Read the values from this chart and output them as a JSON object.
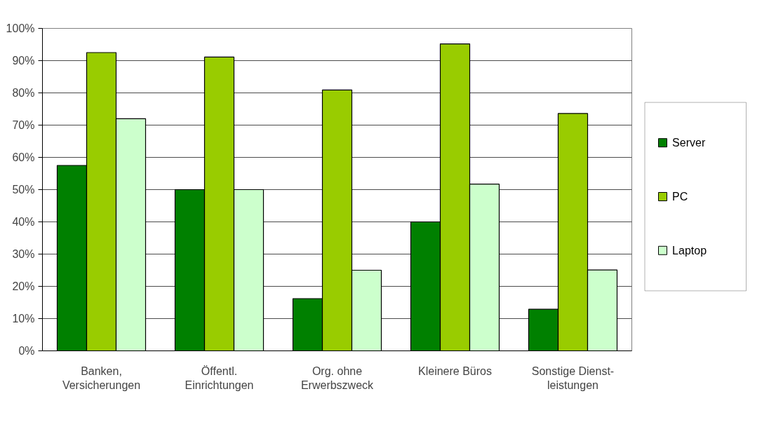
{
  "chart_data": {
    "type": "bar",
    "categories": [
      "Banken,\nVersicherungen",
      "Öffentl.\nEinrichtungen",
      "Org. ohne\nErwerbszweck",
      "Kleinere Büros",
      "Sonstige Dienst-\nleistungen"
    ],
    "series": [
      {
        "name": "Server",
        "color": "#008000",
        "values": [
          57.5,
          50,
          16.2,
          40,
          12.9
        ]
      },
      {
        "name": "PC",
        "color": "#99cc00",
        "values": [
          92.5,
          91.1,
          80.9,
          95.2,
          73.6
        ]
      },
      {
        "name": "Laptop",
        "color": "#ccffcc",
        "values": [
          72,
          50,
          25,
          51.7,
          25.1
        ]
      }
    ],
    "ylim": [
      0,
      100
    ],
    "yticks": [
      {
        "value": 0,
        "label": "0%"
      },
      {
        "value": 10,
        "label": "10%"
      },
      {
        "value": 20,
        "label": "20%"
      },
      {
        "value": 30,
        "label": "30%"
      },
      {
        "value": 40,
        "label": "40%"
      },
      {
        "value": 50,
        "label": "50%"
      },
      {
        "value": 60,
        "label": "60%"
      },
      {
        "value": 70,
        "label": "70%"
      },
      {
        "value": 80,
        "label": "80%"
      },
      {
        "value": 90,
        "label": "90%"
      },
      {
        "value": 100,
        "label": "100%"
      }
    ],
    "grid": "y",
    "legend": "right"
  }
}
